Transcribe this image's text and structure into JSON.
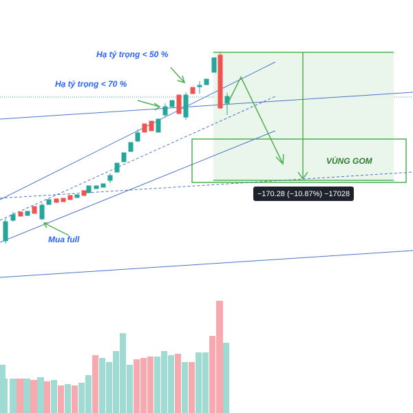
{
  "annotations": {
    "reduce_50": "Hạ tỷ trọng < 50 %",
    "reduce_70": "Hạ tỷ trọng < 70 %",
    "buy_full": "Mua full",
    "zone": "VÙNG GOM"
  },
  "measure_label": "−170.28 (−10.87%) −17028"
}
